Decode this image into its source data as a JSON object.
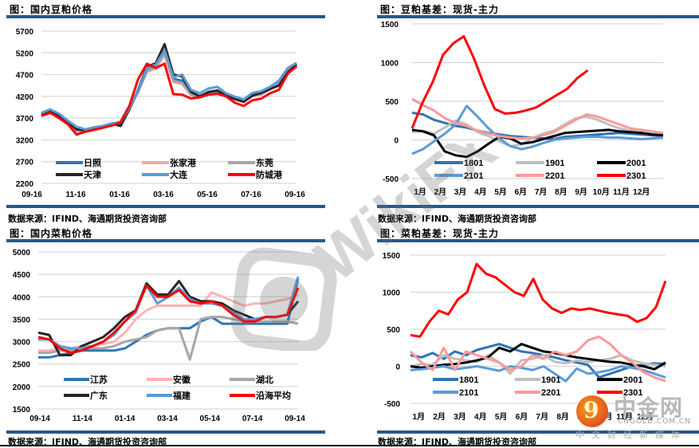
{
  "source_text": "数据来源：IFIND、海通期货投资咨询部",
  "chart_data": [
    {
      "id": "soymeal_price",
      "type": "line",
      "title": "图：国内豆粕价格",
      "xlabel": "",
      "ylabel": "",
      "ylim": [
        2200,
        5700
      ],
      "yticks": [
        5700,
        5200,
        4700,
        4200,
        3700,
        3200,
        2700,
        2200
      ],
      "categories": [
        "09-16",
        "11-16",
        "01-16",
        "03-16",
        "05-16",
        "07-16",
        "09-16"
      ],
      "grid": true,
      "legend_position": "bottom-inside",
      "series": [
        {
          "name": "日照",
          "color": "#2e75b6",
          "values": [
            3800,
            3880,
            3780,
            3620,
            3470,
            3420,
            3470,
            3500,
            3560,
            3620,
            3980,
            4300,
            4820,
            4870,
            5230,
            4600,
            4560,
            4250,
            4180,
            4300,
            4340,
            4220,
            4150,
            4080,
            4230,
            4260,
            4380,
            4500,
            4820,
            4950
          ]
        },
        {
          "name": "张家港",
          "color": "#f4a7a7",
          "values": [
            3760,
            3840,
            3740,
            3590,
            3430,
            3400,
            3460,
            3490,
            3550,
            3610,
            3940,
            4320,
            4760,
            4840,
            5150,
            4530,
            4480,
            4230,
            4160,
            4280,
            4310,
            4200,
            4120,
            4060,
            4200,
            4240,
            4360,
            4480,
            4780,
            4920
          ]
        },
        {
          "name": "东莞",
          "color": "#a6a6a6",
          "values": [
            3740,
            3820,
            3700,
            3560,
            3400,
            3380,
            3440,
            3470,
            3540,
            3590,
            3920,
            4300,
            4780,
            4880,
            5180,
            4560,
            4500,
            4240,
            4170,
            4290,
            4320,
            4210,
            4130,
            4070,
            4210,
            4250,
            4370,
            4490,
            4790,
            4940
          ]
        },
        {
          "name": "天津",
          "color": "#262626",
          "values": [
            3780,
            3860,
            3760,
            3610,
            3440,
            3420,
            3470,
            3510,
            3570,
            3520,
            3900,
            4350,
            4880,
            4960,
            5400,
            4700,
            4660,
            4300,
            4200,
            4300,
            4330,
            4220,
            4140,
            4080,
            4220,
            4280,
            4370,
            4450,
            4750,
            4930
          ]
        },
        {
          "name": "大连",
          "color": "#5b9bd5",
          "values": [
            3820,
            3900,
            3800,
            3640,
            3500,
            3440,
            3490,
            3520,
            3580,
            3600,
            3930,
            4330,
            4850,
            4930,
            5260,
            4640,
            4700,
            4350,
            4270,
            4380,
            4420,
            4270,
            4190,
            4130,
            4280,
            4320,
            4420,
            4560,
            4850,
            4970
          ]
        },
        {
          "name": "防城港",
          "color": "#ff0000",
          "values": [
            3760,
            3820,
            3700,
            3560,
            3320,
            3390,
            3430,
            3480,
            3530,
            3600,
            3980,
            4600,
            4950,
            4850,
            4950,
            4250,
            4240,
            4150,
            4180,
            4240,
            4260,
            4200,
            4050,
            3980,
            4110,
            4150,
            4270,
            4350,
            4720,
            4890
          ]
        }
      ]
    },
    {
      "id": "soymeal_basis",
      "type": "line",
      "title": "图：豆粕基差：现货-主力",
      "xlabel": "",
      "ylabel": "",
      "ylim": [
        -500,
        1500
      ],
      "yticks": [
        1500,
        1000,
        500,
        0,
        -500
      ],
      "categories": [
        "1月",
        "2月",
        "3月",
        "4月",
        "5月",
        "6月",
        "7月",
        "8月",
        "9月",
        "10月",
        "11月",
        "12月"
      ],
      "grid": true,
      "legend_position": "bottom-inside",
      "series": [
        {
          "name": "1801",
          "color": "#2e75b6",
          "values": [
            350,
            330,
            260,
            220,
            180,
            160,
            120,
            90,
            70,
            50,
            40,
            30,
            20,
            10,
            40,
            50,
            60,
            70,
            80,
            90,
            80,
            70,
            60,
            50
          ]
        },
        {
          "name": "1901",
          "color": "#bfbfbf",
          "values": [
            100,
            120,
            80,
            160,
            250,
            200,
            100,
            50,
            -20,
            -80,
            -60,
            20,
            80,
            120,
            200,
            280,
            300,
            260,
            200,
            150,
            120,
            100,
            80,
            60
          ]
        },
        {
          "name": "2001",
          "color": "#000000",
          "values": [
            130,
            110,
            60,
            -150,
            -200,
            -220,
            -150,
            -50,
            40,
            20,
            -50,
            -30,
            10,
            50,
            90,
            100,
            110,
            120,
            130,
            110,
            100,
            90,
            70,
            60
          ]
        },
        {
          "name": "2101",
          "color": "#5b9bd5",
          "values": [
            -180,
            -120,
            -20,
            80,
            200,
            440,
            300,
            150,
            20,
            -80,
            -120,
            -90,
            -40,
            0,
            20,
            30,
            40,
            40,
            30,
            30,
            20,
            10,
            20,
            30
          ]
        },
        {
          "name": "2201",
          "color": "#ff9999",
          "values": [
            530,
            450,
            380,
            280,
            220,
            180,
            120,
            80,
            50,
            30,
            20,
            30,
            60,
            100,
            180,
            260,
            330,
            300,
            250,
            200,
            150,
            130,
            110,
            90
          ]
        },
        {
          "name": "2301",
          "color": "#ff0000",
          "values": [
            150,
            480,
            750,
            1100,
            1250,
            1340,
            1050,
            700,
            400,
            340,
            350,
            380,
            420,
            500,
            580,
            660,
            800,
            900
          ]
        }
      ]
    },
    {
      "id": "rapemeal_price",
      "type": "line",
      "title": "图：国内菜粕价格",
      "xlabel": "",
      "ylabel": "",
      "ylim": [
        1500,
        5000
      ],
      "yticks": [
        5000,
        4500,
        4000,
        3500,
        3000,
        2500,
        2000,
        1500
      ],
      "categories": [
        "09-14",
        "11-14",
        "01-14",
        "03-14",
        "05-14",
        "07-14",
        "09-14"
      ],
      "grid": true,
      "legend_position": "bottom-inside",
      "series": [
        {
          "name": "江苏",
          "color": "#2e75b6",
          "values": [
            2650,
            2650,
            2700,
            2750,
            2800,
            2800,
            2800,
            2800,
            2850,
            3000,
            3150,
            3250,
            3300,
            3300,
            3300,
            3450,
            3550,
            3400,
            3400,
            3400,
            3400,
            3400,
            3400,
            3400,
            4400
          ]
        },
        {
          "name": "安徽",
          "color": "#ffb3b3",
          "values": [
            2800,
            2800,
            2850,
            2850,
            2900,
            2900,
            2950,
            3000,
            3200,
            3500,
            3700,
            3800,
            3800,
            3800,
            3800,
            3800,
            4100,
            4000,
            3900,
            3800,
            3850,
            3850,
            3900,
            3950,
            4050
          ]
        },
        {
          "name": "湖北",
          "color": "#a6a6a6",
          "values": [
            2750,
            2750,
            2800,
            2800,
            2850,
            2850,
            2850,
            2900,
            3000,
            3050,
            3100,
            3250,
            3300,
            3300,
            2600,
            3500,
            3550,
            3550,
            3500,
            3450,
            3450,
            3450,
            3450,
            3450,
            3400
          ]
        },
        {
          "name": "广东",
          "color": "#262626",
          "values": [
            3200,
            3150,
            2700,
            2700,
            2900,
            3000,
            3100,
            3300,
            3550,
            3700,
            4300,
            4050,
            4050,
            4350,
            4000,
            3900,
            3900,
            3850,
            3700,
            3600,
            3500,
            3550,
            3550,
            3600,
            3900
          ]
        },
        {
          "name": "福建",
          "color": "#5b9bd5",
          "values": [
            3050,
            3050,
            2900,
            2850,
            2850,
            2900,
            3000,
            3150,
            3450,
            3650,
            4250,
            3850,
            4000,
            4200,
            3950,
            3850,
            3850,
            3800,
            3650,
            3500,
            3500,
            3550,
            3550,
            3600,
            4450
          ]
        },
        {
          "name": "沿海平均",
          "color": "#ff0000",
          "values": [
            3100,
            3050,
            2850,
            2750,
            2800,
            2900,
            3000,
            3200,
            3450,
            3700,
            4250,
            4000,
            4000,
            4150,
            3900,
            3850,
            3900,
            3800,
            3600,
            3450,
            3450,
            3550,
            3550,
            3600,
            4200
          ]
        }
      ]
    },
    {
      "id": "rapemeal_basis",
      "type": "line",
      "title": "图：菜粕基差：现货-主力",
      "xlabel": "",
      "ylabel": "",
      "ylim": [
        -500,
        1500
      ],
      "yticks": [
        1500,
        1000,
        500,
        0,
        -500
      ],
      "categories": [
        "1月",
        "2月",
        "3月",
        "4月",
        "5月",
        "6月",
        "7月",
        "8月",
        "9月",
        "10月",
        "11月",
        "12月"
      ],
      "grid": true,
      "legend_position": "bottom-inside",
      "series": [
        {
          "name": "1801",
          "color": "#2e75b6",
          "values": [
            150,
            120,
            180,
            100,
            200,
            150,
            220,
            260,
            300,
            250,
            200,
            180,
            150,
            120,
            80,
            50,
            20,
            -150,
            -100,
            -50,
            0,
            20,
            40,
            30
          ]
        },
        {
          "name": "1901",
          "color": "#bfbfbf",
          "values": [
            0,
            30,
            20,
            150,
            100,
            80,
            60,
            150,
            50,
            -100,
            80,
            100,
            150,
            60,
            40,
            80,
            60,
            80,
            100,
            150,
            80,
            40,
            20,
            0
          ]
        },
        {
          "name": "2001",
          "color": "#000000",
          "values": [
            0,
            -20,
            0,
            20,
            30,
            50,
            80,
            120,
            250,
            200,
            300,
            250,
            200,
            180,
            150,
            120,
            100,
            80,
            60,
            50,
            20,
            0,
            -40,
            50
          ]
        },
        {
          "name": "2101",
          "color": "#5b9bd5",
          "values": [
            -50,
            -40,
            -20,
            0,
            -40,
            -20,
            0,
            -30,
            -60,
            0,
            -20,
            -50,
            0,
            -100,
            -200,
            -30,
            -100,
            -80,
            -50,
            0,
            -20,
            -50,
            -100,
            -150
          ]
        },
        {
          "name": "2201",
          "color": "#ff9999",
          "values": [
            200,
            50,
            -50,
            250,
            -50,
            200,
            150,
            100,
            50,
            -50,
            0,
            150,
            100,
            200,
            150,
            200,
            350,
            400,
            300,
            150,
            50,
            -80,
            -150,
            -200
          ]
        },
        {
          "name": "2301",
          "color": "#ff0000",
          "values": [
            420,
            400,
            600,
            750,
            700,
            900,
            1000,
            1380,
            1250,
            1200,
            1100,
            1000,
            950,
            1180,
            900,
            780,
            720,
            780,
            760,
            780,
            750,
            720,
            700,
            680,
            600,
            650,
            800,
            1150
          ]
        }
      ]
    }
  ],
  "watermarks": {
    "center": "WikiFX",
    "corner_brand_cn": "中金网",
    "corner_brand_en": "CNGOLD.COM.CN",
    "corner_brand_sub": "中文财经新媒体"
  }
}
